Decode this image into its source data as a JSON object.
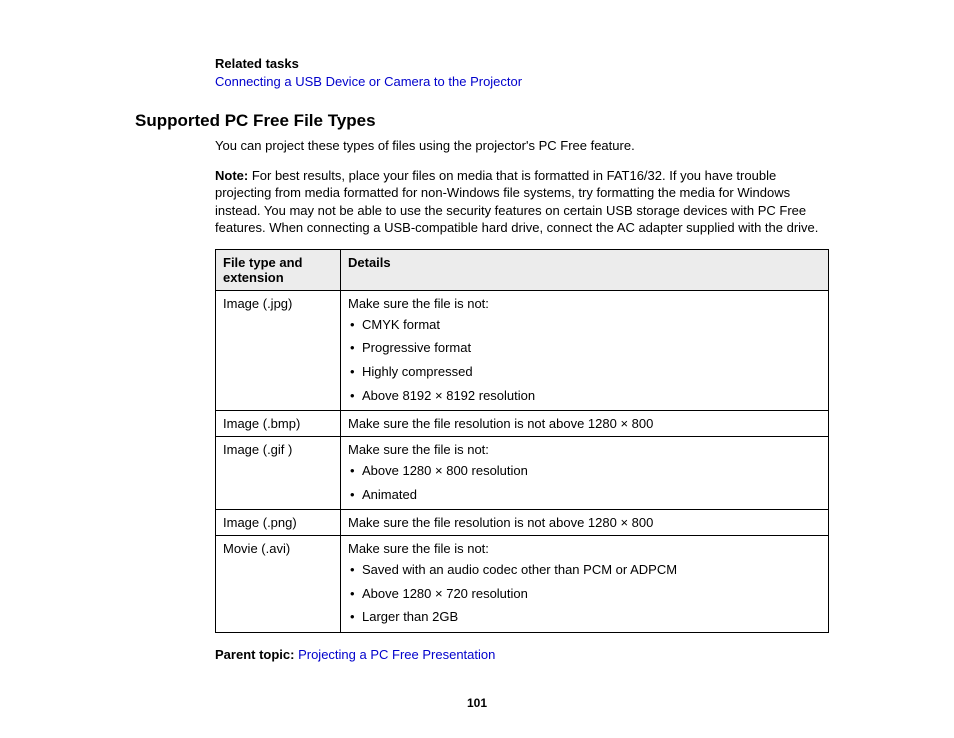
{
  "relatedTasks": {
    "heading": "Related tasks",
    "linkText": "Connecting a USB Device or Camera to the Projector"
  },
  "section": {
    "heading": "Supported PC Free File Types",
    "intro": "You can project these types of files using the projector's PC Free feature.",
    "noteLabel": "Note:",
    "noteText": " For best results, place your files on media that is formatted in FAT16/32. If you have trouble projecting from media formatted for non-Windows file systems, try formatting the media for Windows instead. You may not be able to use the security features on certain USB storage devices with PC Free features. When connecting a USB-compatible hard drive, connect the AC adapter supplied with the drive."
  },
  "table": {
    "col1": "File type and extension",
    "col2": "Details",
    "rows": [
      {
        "type": "Image (.jpg)",
        "lead": "Make sure the file is not:",
        "bullets": [
          "CMYK format",
          "Progressive format",
          "Highly compressed",
          "Above 8192 × 8192 resolution"
        ]
      },
      {
        "type": "Image (.bmp)",
        "lead": "Make sure the file resolution is not above 1280 × 800",
        "bullets": []
      },
      {
        "type": "Image (.gif )",
        "lead": "Make sure the file is not:",
        "bullets": [
          "Above 1280 × 800 resolution",
          "Animated"
        ]
      },
      {
        "type": "Image (.png)",
        "lead": "Make sure the file resolution is not above 1280 × 800",
        "bullets": []
      },
      {
        "type": "Movie (.avi)",
        "lead": "Make sure the file is not:",
        "bullets": [
          "Saved with an audio codec other than PCM or ADPCM",
          "Above 1280 × 720 resolution",
          "Larger than 2GB"
        ]
      }
    ]
  },
  "parentTopic": {
    "label": "Parent topic: ",
    "linkText": "Projecting a PC Free Presentation"
  },
  "pageNumber": "101"
}
